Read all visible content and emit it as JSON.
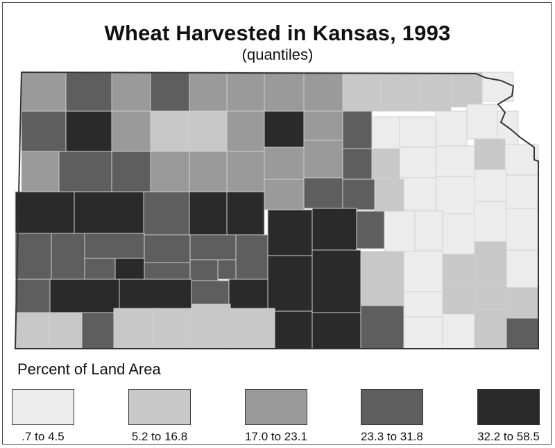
{
  "title": "Wheat Harvested in Kansas, 1993",
  "subtitle": "(quantiles)",
  "legend": {
    "title": "Percent of Land Area",
    "classes": [
      {
        "label": ".7 to 4.5",
        "color": "#ececec"
      },
      {
        "label": "5.2 to 16.8",
        "color": "#c8c8c8"
      },
      {
        "label": "17.0 to 23.1",
        "color": "#9a9a9a"
      },
      {
        "label": "23.3 to 31.8",
        "color": "#5e5e5e"
      },
      {
        "label": "32.2 to 58.5",
        "color": "#2a2a2a"
      }
    ]
  },
  "colors": {
    "county_border": "#cfcfcf",
    "state_border": "#333333"
  }
}
